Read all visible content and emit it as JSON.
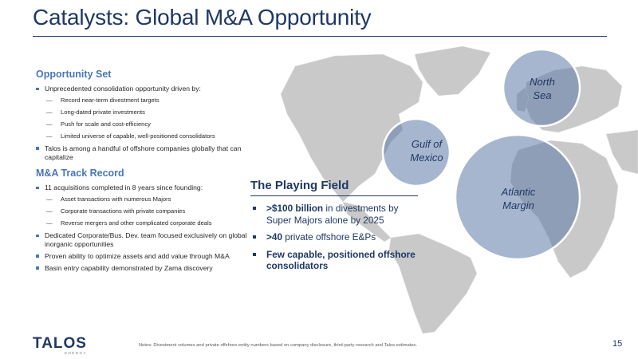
{
  "header": {
    "title": "Catalysts: Global M&A Opportunity"
  },
  "opportunity": {
    "title": "Opportunity Set",
    "bullets": [
      {
        "text": "Unprecedented consolidation opportunity driven by:",
        "subs": [
          "Record near-term divestment targets",
          "Long-dated private investments",
          "Push for scale and cost-efficiency",
          "Limited universe of capable, well-positioned consolidators"
        ]
      },
      {
        "text": "Talos is among a handful of offshore companies globally that can capitalize"
      }
    ]
  },
  "track": {
    "title": "M&A Track Record",
    "bullets": [
      {
        "text": "11 acquisitions completed in 8 years since founding:",
        "subs": [
          "Asset transactions with numerous Majors",
          "Corporate transactions with private companies",
          "Reverse mergers and other complicated corporate deals"
        ]
      },
      {
        "text": "Dedicated Corporate/Bus. Dev. team focused exclusively on global inorganic opportunities"
      },
      {
        "text": "Proven ability to optimize assets and add value through M&A"
      },
      {
        "text": "Basin entry capability demonstrated by Zama discovery"
      }
    ]
  },
  "playing_field": {
    "title": "The Playing Field",
    "b1_bold": ">$100 billion",
    "b1_rest": " in divestments by Super Majors alone by 2025",
    "b2_bold": ">40",
    "b2_rest": " private offshore E&Ps",
    "b3_bold": "Few capable, positioned offshore consolidators"
  },
  "map": {
    "regions": [
      "North Sea",
      "Gulf of Mexico",
      "Atlantic Margin"
    ],
    "north_sea_l1": "North",
    "north_sea_l2": "Sea",
    "gom_l1": "Gulf of",
    "gom_l2": "Mexico",
    "atl_l1": "Atlantic",
    "atl_l2": "Margin",
    "colors": {
      "land": "#c9c9c9",
      "circle_fill": "#5e7aa8",
      "circle_stroke": "#ffffff"
    }
  },
  "footer": {
    "logo": "TALOS",
    "logo_sub": "ENERGY",
    "notes": "Notes: Divestment volumes and private offshore entity numbers based on company disclosure, third-party research and Talos estimates.",
    "page": "15"
  },
  "colors": {
    "navy": "#1f3864",
    "accent_blue": "#4a76b8"
  }
}
